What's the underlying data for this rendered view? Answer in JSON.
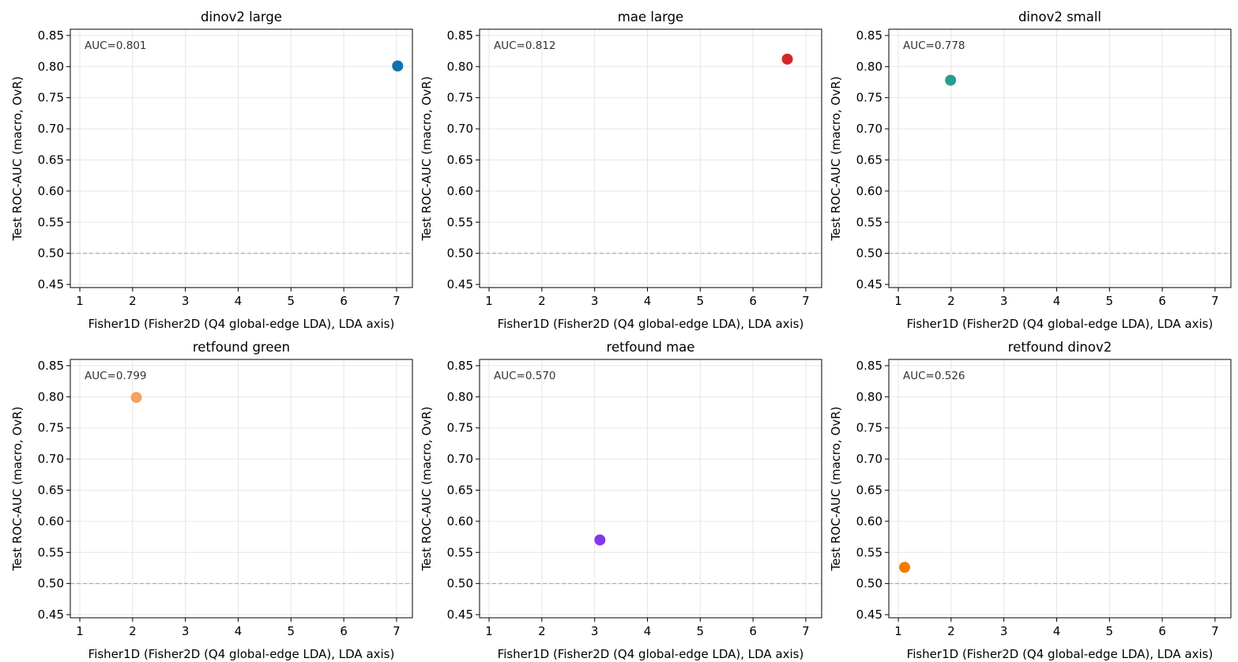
{
  "figure": {
    "suptitle": "",
    "x_label": "Fisher1D (Fisher2D (Q4 global-edge LDA), LDA axis)",
    "y_label": "Test ROC-AUC (macro, OvR)"
  },
  "chart_data": [
    {
      "type": "scatter",
      "title": "dinov2 large",
      "annotation": "AUC=0.801",
      "xlabel": "Fisher1D (Fisher2D (Q4 global-edge LDA), LDA axis)",
      "ylabel": "Test ROC-AUC (macro, OvR)",
      "xlim": [
        0.82,
        7.3
      ],
      "ylim": [
        0.445,
        0.86
      ],
      "xticks": [
        1,
        2,
        3,
        4,
        5,
        6,
        7
      ],
      "yticks": [
        0.45,
        0.5,
        0.55,
        0.6,
        0.65,
        0.7,
        0.75,
        0.8,
        0.85
      ],
      "grid": true,
      "reference_line": 0.5,
      "point_color": "#0e72b0",
      "points": [
        {
          "x": 7.02,
          "y": 0.801
        }
      ]
    },
    {
      "type": "scatter",
      "title": "mae large",
      "annotation": "AUC=0.812",
      "xlabel": "Fisher1D (Fisher2D (Q4 global-edge LDA), LDA axis)",
      "ylabel": "Test ROC-AUC (macro, OvR)",
      "xlim": [
        0.82,
        7.3
      ],
      "ylim": [
        0.445,
        0.86
      ],
      "xticks": [
        1,
        2,
        3,
        4,
        5,
        6,
        7
      ],
      "yticks": [
        0.45,
        0.5,
        0.55,
        0.6,
        0.65,
        0.7,
        0.75,
        0.8,
        0.85
      ],
      "grid": true,
      "reference_line": 0.5,
      "point_color": "#d62728",
      "points": [
        {
          "x": 6.65,
          "y": 0.812
        }
      ]
    },
    {
      "type": "scatter",
      "title": "dinov2 small",
      "annotation": "AUC=0.778",
      "xlabel": "Fisher1D (Fisher2D (Q4 global-edge LDA), LDA axis)",
      "ylabel": "Test ROC-AUC (macro, OvR)",
      "xlim": [
        0.82,
        7.3
      ],
      "ylim": [
        0.445,
        0.86
      ],
      "xticks": [
        1,
        2,
        3,
        4,
        5,
        6,
        7
      ],
      "yticks": [
        0.45,
        0.5,
        0.55,
        0.6,
        0.65,
        0.7,
        0.75,
        0.8,
        0.85
      ],
      "grid": true,
      "reference_line": 0.5,
      "point_color": "#2a9d8f",
      "points": [
        {
          "x": 1.99,
          "y": 0.778
        }
      ]
    },
    {
      "type": "scatter",
      "title": "retfound green",
      "annotation": "AUC=0.799",
      "xlabel": "Fisher1D (Fisher2D (Q4 global-edge LDA), LDA axis)",
      "ylabel": "Test ROC-AUC (macro, OvR)",
      "xlim": [
        0.82,
        7.3
      ],
      "ylim": [
        0.445,
        0.86
      ],
      "xticks": [
        1,
        2,
        3,
        4,
        5,
        6,
        7
      ],
      "yticks": [
        0.45,
        0.5,
        0.55,
        0.6,
        0.65,
        0.7,
        0.75,
        0.8,
        0.85
      ],
      "grid": true,
      "reference_line": 0.5,
      "point_color": "#f4a261",
      "points": [
        {
          "x": 2.07,
          "y": 0.799
        }
      ]
    },
    {
      "type": "scatter",
      "title": "retfound mae",
      "annotation": "AUC=0.570",
      "xlabel": "Fisher1D (Fisher2D (Q4 global-edge LDA), LDA axis)",
      "ylabel": "Test ROC-AUC (macro, OvR)",
      "xlim": [
        0.82,
        7.3
      ],
      "ylim": [
        0.445,
        0.86
      ],
      "xticks": [
        1,
        2,
        3,
        4,
        5,
        6,
        7
      ],
      "yticks": [
        0.45,
        0.5,
        0.55,
        0.6,
        0.65,
        0.7,
        0.75,
        0.8,
        0.85
      ],
      "grid": true,
      "reference_line": 0.5,
      "point_color": "#8338ec",
      "points": [
        {
          "x": 3.1,
          "y": 0.57
        }
      ]
    },
    {
      "type": "scatter",
      "title": "retfound dinov2",
      "annotation": "AUC=0.526",
      "xlabel": "Fisher1D (Fisher2D (Q4 global-edge LDA), LDA axis)",
      "ylabel": "Test ROC-AUC (macro, OvR)",
      "xlim": [
        0.82,
        7.3
      ],
      "ylim": [
        0.445,
        0.86
      ],
      "xticks": [
        1,
        2,
        3,
        4,
        5,
        6,
        7
      ],
      "yticks": [
        0.45,
        0.5,
        0.55,
        0.6,
        0.65,
        0.7,
        0.75,
        0.8,
        0.85
      ],
      "grid": true,
      "reference_line": 0.5,
      "point_color": "#f57c00",
      "points": [
        {
          "x": 1.12,
          "y": 0.526
        }
      ]
    }
  ]
}
